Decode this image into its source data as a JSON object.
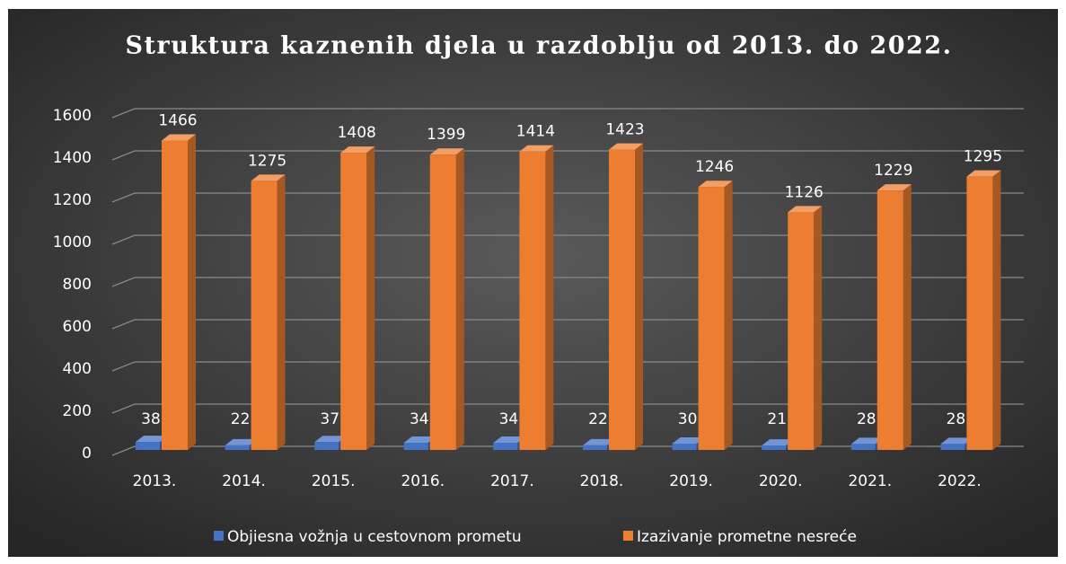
{
  "chart_data": {
    "type": "bar3d",
    "title": "Struktura kaznenih djela u razdoblju od 2013. do 2022.",
    "categories": [
      "2013.",
      "2014.",
      "2015.",
      "2016.",
      "2017.",
      "2018.",
      "2019.",
      "2020.",
      "2021.",
      "2022."
    ],
    "series": [
      {
        "name": "Objiesna vožnja u cestovnom prometu",
        "color": "#4472c4",
        "values": [
          38,
          22,
          37,
          34,
          34,
          22,
          30,
          21,
          28,
          28
        ]
      },
      {
        "name": "Izazivanje prometne nesreće",
        "color": "#ed7d31",
        "values": [
          1466,
          1275,
          1408,
          1399,
          1414,
          1423,
          1246,
          1126,
          1229,
          1295
        ]
      }
    ],
    "ylim": [
      0,
      1600
    ],
    "yticks": [
      0,
      200,
      400,
      600,
      800,
      1000,
      1200,
      1400,
      1600
    ],
    "grid": true,
    "legend": "bottom"
  }
}
